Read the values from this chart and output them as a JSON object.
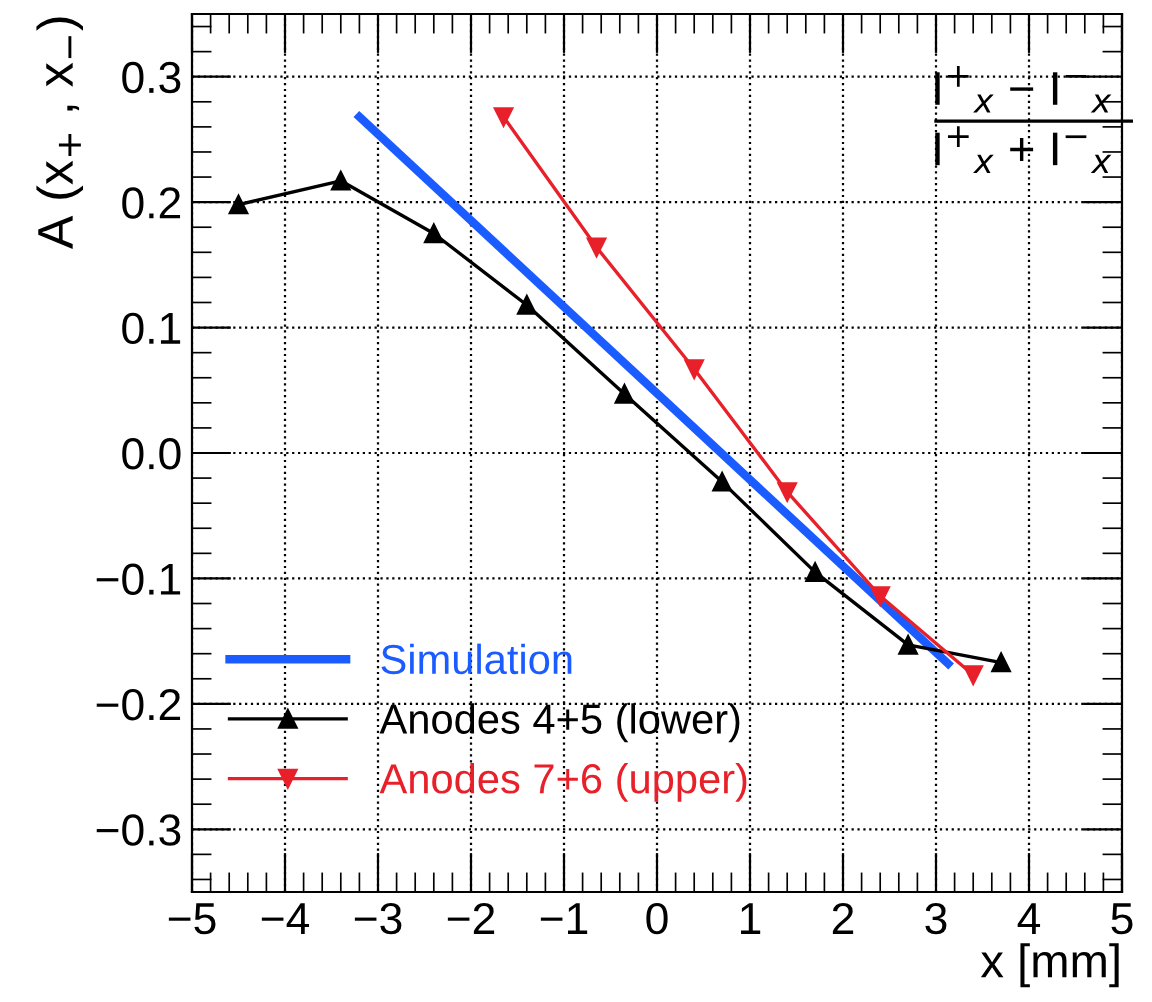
{
  "chart_data": {
    "type": "line",
    "xlabel": "x [mm]",
    "ylabel": "A (x$_{+}$ , x$_{−}$)",
    "annotations": [
      "I$^{+}$$_{x}$ − I$^{−}$$_{x}$",
      "I$^{+}$$_{x}$ + I$^{−}$$_{x}$"
    ],
    "series": [
      {
        "name": "Simulation",
        "color": "#1a5cff",
        "x": [
          -3.2,
          3.13
        ],
        "values": [
          0.268,
          -0.168
        ],
        "marker": "none"
      },
      {
        "name": "Anodes 4+5 (lower)",
        "color": "#000000",
        "x": [
          -4.5,
          -3.4,
          -2.4,
          -1.4,
          -0.35,
          0.7,
          1.7,
          2.7,
          3.7
        ],
        "values": [
          0.198,
          0.217,
          0.175,
          0.118,
          0.047,
          -0.023,
          -0.095,
          -0.153,
          -0.167
        ],
        "marker": "triangle"
      },
      {
        "name": "Anodes 7+6 (upper)",
        "color": "#e8202a",
        "x": [
          -1.65,
          -0.65,
          0.4,
          1.4,
          2.4,
          3.4
        ],
        "values": [
          0.268,
          0.164,
          0.067,
          -0.031,
          -0.114,
          -0.177
        ],
        "marker": "triangle_down"
      }
    ],
    "xlim": [
      -5,
      5
    ],
    "xticks": [
      {
        "value": -5,
        "label": "−5"
      },
      {
        "value": -4,
        "label": "−4"
      },
      {
        "value": -3,
        "label": "−3"
      },
      {
        "value": -2,
        "label": "−2"
      },
      {
        "value": -1,
        "label": "−1"
      },
      0,
      1,
      2,
      3,
      4,
      5
    ],
    "ylim": [
      -0.35,
      0.35
    ],
    "yticks": [
      {
        "value": -0.3,
        "label": "−0.3"
      },
      {
        "value": -0.2,
        "label": "−0.2"
      },
      {
        "value": -0.1,
        "label": "−0.1"
      },
      {
        "value": 0,
        "label": "0.0"
      },
      0.1,
      0.2,
      0.3
    ],
    "grid": true,
    "legend": "bottom left"
  }
}
